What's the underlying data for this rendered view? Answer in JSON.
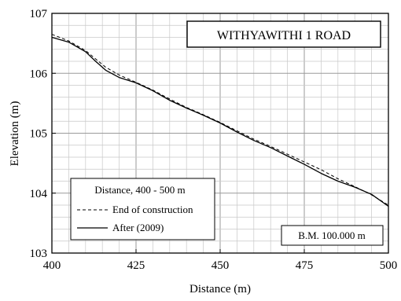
{
  "chart_data": {
    "type": "line",
    "title": "WITHYAWITHI 1 ROAD",
    "xlabel": "Distance (m)",
    "ylabel": "Elevation (m)",
    "xlim": [
      400,
      500
    ],
    "ylim": [
      103,
      107
    ],
    "x_ticks": [
      400,
      425,
      450,
      475,
      500
    ],
    "y_ticks": [
      103,
      104,
      105,
      106,
      107
    ],
    "x_minor_step": 5,
    "y_minor_step": 0.2,
    "grid": true,
    "legend": {
      "title": "Distance, 400 - 500 m",
      "placement": "bottom-left"
    },
    "annotation": "B.M. 100.000 m",
    "series": [
      {
        "name": "End of construction",
        "style": "dashed",
        "color": "#000000",
        "x": [
          400,
          405,
          410,
          413,
          416,
          420,
          425,
          430,
          435,
          440,
          445,
          450,
          455,
          460,
          465,
          470,
          475,
          480,
          485,
          490,
          495,
          500
        ],
        "y": [
          106.65,
          106.54,
          106.38,
          106.24,
          106.1,
          105.97,
          105.85,
          105.72,
          105.57,
          105.43,
          105.31,
          105.18,
          105.04,
          104.9,
          104.78,
          104.65,
          104.52,
          104.39,
          104.24,
          104.11,
          103.97,
          103.8
        ]
      },
      {
        "name": "After (2009)",
        "style": "solid",
        "color": "#000000",
        "x": [
          400,
          405,
          410,
          413,
          416,
          420,
          425,
          430,
          435,
          440,
          445,
          450,
          455,
          460,
          465,
          470,
          475,
          480,
          485,
          490,
          495,
          500
        ],
        "y": [
          106.6,
          106.52,
          106.36,
          106.2,
          106.05,
          105.93,
          105.84,
          105.71,
          105.55,
          105.42,
          105.3,
          105.17,
          105.02,
          104.88,
          104.76,
          104.62,
          104.48,
          104.33,
          104.2,
          104.1,
          103.98,
          103.78
        ]
      }
    ]
  }
}
